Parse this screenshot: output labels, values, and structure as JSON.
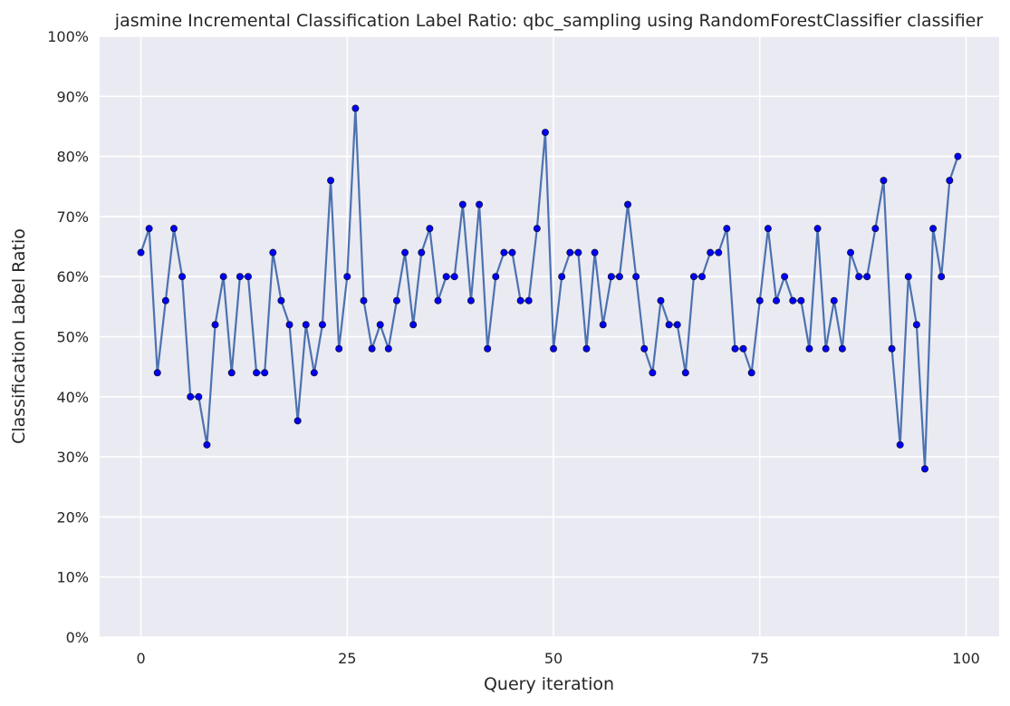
{
  "chart_data": {
    "type": "line",
    "title": "jasmine Incremental Classification Label Ratio: qbc_sampling using RandomForestClassifier classifier",
    "xlabel": "Query iteration",
    "ylabel": "Classification Label Ratio",
    "xlim": [
      -5,
      104
    ],
    "ylim": [
      0,
      1
    ],
    "x_ticks": [
      0,
      25,
      50,
      75,
      100
    ],
    "y_ticks": [
      0,
      0.1,
      0.2,
      0.3,
      0.4,
      0.5,
      0.6,
      0.7,
      0.8,
      0.9,
      1.0
    ],
    "x_tick_labels": [
      "0",
      "25",
      "50",
      "75",
      "100"
    ],
    "y_tick_labels": [
      "0%",
      "10%",
      "20%",
      "30%",
      "40%",
      "50%",
      "60%",
      "70%",
      "80%",
      "90%",
      "100%"
    ],
    "grid": true,
    "line_color": "#4c72b0",
    "marker_color": "#0000ff",
    "background_color": "#eaeaf2",
    "series": [
      {
        "values": [
          0.64,
          0.68,
          0.44,
          0.56,
          0.68,
          0.6,
          0.4,
          0.4,
          0.32,
          0.52,
          0.6,
          0.44,
          0.6,
          0.6,
          0.44,
          0.44,
          0.64,
          0.56,
          0.52,
          0.36,
          0.52,
          0.44,
          0.52,
          0.76,
          0.48,
          0.6,
          0.88,
          0.56,
          0.48,
          0.52,
          0.48,
          0.56,
          0.64,
          0.52,
          0.64,
          0.68,
          0.56,
          0.6,
          0.6,
          0.72,
          0.56,
          0.72,
          0.48,
          0.6,
          0.64,
          0.64,
          0.56,
          0.56,
          0.68,
          0.84,
          0.48,
          0.6,
          0.64,
          0.64,
          0.48,
          0.64,
          0.52,
          0.6,
          0.6,
          0.72,
          0.6,
          0.48,
          0.44,
          0.56,
          0.52,
          0.52,
          0.44,
          0.6,
          0.6,
          0.64,
          0.64,
          0.68,
          0.48,
          0.48,
          0.44,
          0.56,
          0.68,
          0.56,
          0.6,
          0.56,
          0.56,
          0.48,
          0.68,
          0.48,
          0.56,
          0.48,
          0.64,
          0.6,
          0.6,
          0.68,
          0.76,
          0.48,
          0.32,
          0.6,
          0.52,
          0.28,
          0.68,
          0.6,
          0.76,
          0.8
        ]
      }
    ]
  }
}
